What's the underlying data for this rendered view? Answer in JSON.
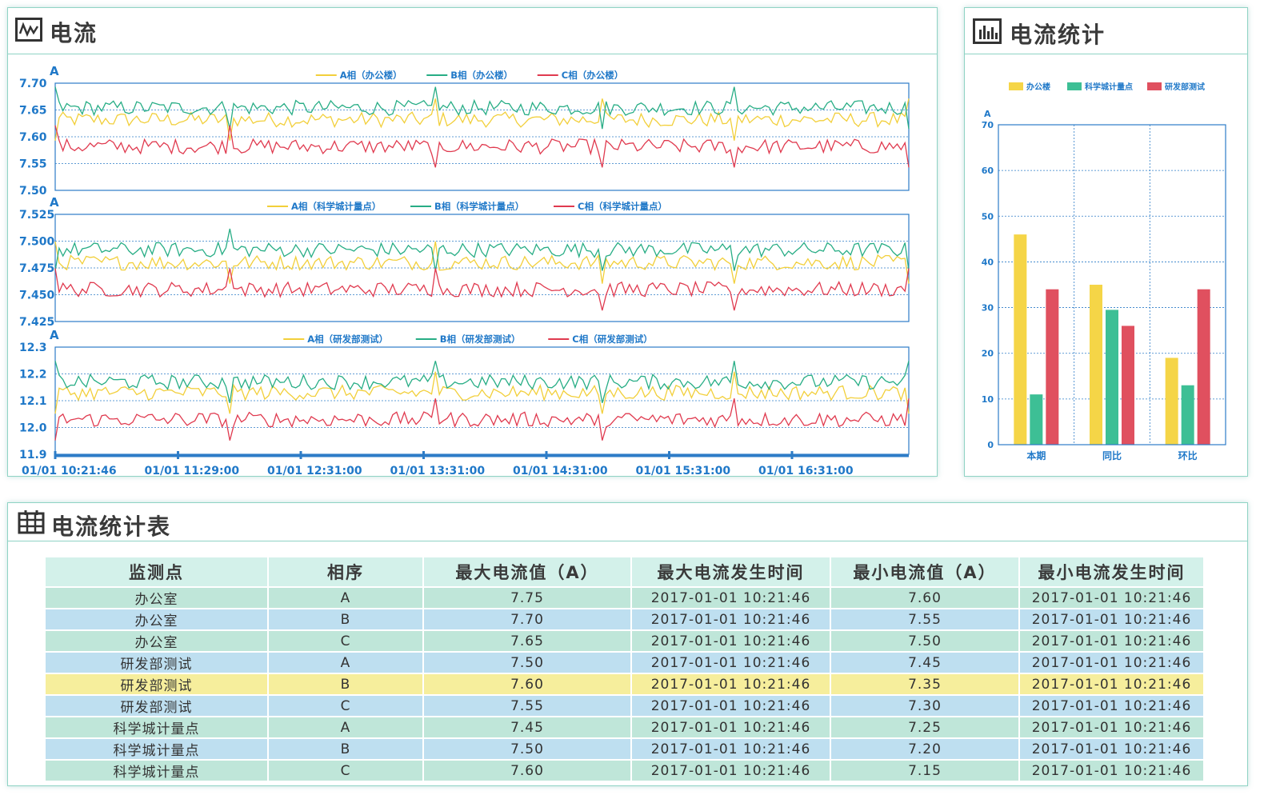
{
  "current_panel": {
    "title": "电流",
    "charts": [
      {
        "legend": [
          "A相（办公楼）",
          "B相（办公楼）",
          "C相（办公楼）"
        ],
        "unit": "A",
        "ticks": [
          "7.70",
          "7.65",
          "7.60",
          "7.55",
          "7.50"
        ],
        "ylim": [
          7.5,
          7.7
        ],
        "levels": [
          7.632,
          7.654,
          7.582
        ]
      },
      {
        "legend": [
          "A相（科学城计量点）",
          "B相（科学城计量点）",
          "C相（科学城计量点）"
        ],
        "unit": "A",
        "ticks": [
          "7.525",
          "7.500",
          "7.475",
          "7.450",
          "7.425"
        ],
        "ylim": [
          7.425,
          7.525
        ],
        "levels": [
          7.48,
          7.492,
          7.455
        ]
      },
      {
        "legend": [
          "A相（研发部测试）",
          "B相（研发部测试）",
          "C相（研发部测试）"
        ],
        "unit": "A",
        "ticks": [
          "12.3",
          "12.2",
          "12.1",
          "12.0",
          "11.9"
        ],
        "ylim": [
          11.9,
          12.3
        ],
        "levels": [
          12.13,
          12.17,
          12.03
        ]
      }
    ],
    "x_ticks": [
      "01/01  10:21:46",
      "01/01  11:29:00",
      "01/01  12:31:00",
      "01/01  13:31:00",
      "01/01  14:31:00",
      "01/01  15:31:00",
      "01/01  16:31:00"
    ],
    "colors": {
      "a": "#f2cf3a",
      "b": "#27ad85",
      "c": "#e03a4f"
    }
  },
  "stats_panel": {
    "title": "电流统计",
    "legend": [
      "办公楼",
      "科学城计量点",
      "研发部测试"
    ],
    "colors": [
      "#f5d547",
      "#3dbf95",
      "#e0505f"
    ],
    "chart_data": {
      "type": "bar",
      "categories": [
        "本期",
        "同比",
        "环比"
      ],
      "series": [
        {
          "name": "办公楼",
          "values": [
            46,
            35,
            19
          ]
        },
        {
          "name": "科学城计量点",
          "values": [
            11,
            29.5,
            13
          ]
        },
        {
          "name": "研发部测试",
          "values": [
            34,
            26,
            34
          ]
        }
      ],
      "ylabel": "A",
      "ylim": [
        0,
        70
      ],
      "y_ticks": [
        "70",
        "60",
        "50",
        "40",
        "30",
        "20",
        "10",
        "0"
      ]
    }
  },
  "table_panel": {
    "title": "电流统计表",
    "headers": [
      "监测点",
      "相序",
      "最大电流值（A）",
      "最大电流发生时间",
      "最小电流值（A）",
      "最小电流发生时间"
    ],
    "rows": [
      [
        "办公室",
        "A",
        "7.75",
        "2017-01-01  10:21:46",
        "7.60",
        "2017-01-01  10:21:46"
      ],
      [
        "办公室",
        "B",
        "7.70",
        "2017-01-01  10:21:46",
        "7.55",
        "2017-01-01  10:21:46"
      ],
      [
        "办公室",
        "C",
        "7.65",
        "2017-01-01  10:21:46",
        "7.50",
        "2017-01-01  10:21:46"
      ],
      [
        "研发部测试",
        "A",
        "7.50",
        "2017-01-01  10:21:46",
        "7.45",
        "2017-01-01  10:21:46"
      ],
      [
        "研发部测试",
        "B",
        "7.60",
        "2017-01-01  10:21:46",
        "7.35",
        "2017-01-01  10:21:46"
      ],
      [
        "研发部测试",
        "C",
        "7.55",
        "2017-01-01  10:21:46",
        "7.30",
        "2017-01-01  10:21:46"
      ],
      [
        "科学城计量点",
        "A",
        "7.45",
        "2017-01-01  10:21:46",
        "7.25",
        "2017-01-01  10:21:46"
      ],
      [
        "科学城计量点",
        "B",
        "7.50",
        "2017-01-01  10:21:46",
        "7.20",
        "2017-01-01  10:21:46"
      ],
      [
        "科学城计量点",
        "C",
        "7.60",
        "2017-01-01  10:21:46",
        "7.15",
        "2017-01-01  10:21:46"
      ]
    ]
  }
}
